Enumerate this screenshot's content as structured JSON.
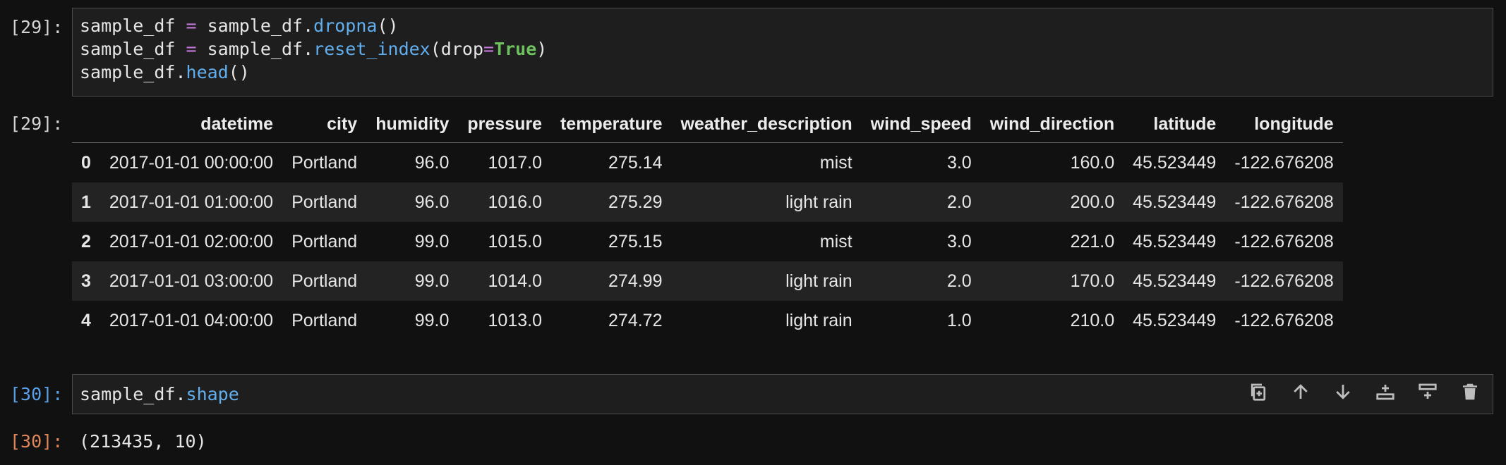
{
  "cells": [
    {
      "input_prompt": "[29]:",
      "output_prompt": "[29]:",
      "code_lines": [
        [
          {
            "t": "sample_df ",
            "c": ""
          },
          {
            "t": "=",
            "c": "kw-op"
          },
          {
            "t": " sample_df.",
            "c": ""
          },
          {
            "t": "dropna",
            "c": "fn"
          },
          {
            "t": "()",
            "c": ""
          }
        ],
        [
          {
            "t": "sample_df ",
            "c": ""
          },
          {
            "t": "=",
            "c": "kw-op"
          },
          {
            "t": " sample_df.",
            "c": ""
          },
          {
            "t": "reset_index",
            "c": "fn"
          },
          {
            "t": "(drop",
            "c": ""
          },
          {
            "t": "=",
            "c": "kw-op"
          },
          {
            "t": "True",
            "c": "bool"
          },
          {
            "t": ")",
            "c": ""
          }
        ],
        [
          {
            "t": "sample_df.",
            "c": ""
          },
          {
            "t": "head",
            "c": "fn"
          },
          {
            "t": "()",
            "c": ""
          }
        ]
      ],
      "table": {
        "columns": [
          "",
          "datetime",
          "city",
          "humidity",
          "pressure",
          "temperature",
          "weather_description",
          "wind_speed",
          "wind_direction",
          "latitude",
          "longitude"
        ],
        "rows": [
          [
            "0",
            "2017-01-01 00:00:00",
            "Portland",
            "96.0",
            "1017.0",
            "275.14",
            "mist",
            "3.0",
            "160.0",
            "45.523449",
            "-122.676208"
          ],
          [
            "1",
            "2017-01-01 01:00:00",
            "Portland",
            "96.0",
            "1016.0",
            "275.29",
            "light rain",
            "2.0",
            "200.0",
            "45.523449",
            "-122.676208"
          ],
          [
            "2",
            "2017-01-01 02:00:00",
            "Portland",
            "99.0",
            "1015.0",
            "275.15",
            "mist",
            "3.0",
            "221.0",
            "45.523449",
            "-122.676208"
          ],
          [
            "3",
            "2017-01-01 03:00:00",
            "Portland",
            "99.0",
            "1014.0",
            "274.99",
            "light rain",
            "2.0",
            "170.0",
            "45.523449",
            "-122.676208"
          ],
          [
            "4",
            "2017-01-01 04:00:00",
            "Portland",
            "99.0",
            "1013.0",
            "274.72",
            "light rain",
            "1.0",
            "210.0",
            "45.523449",
            "-122.676208"
          ]
        ]
      }
    },
    {
      "input_prompt": "[30]:",
      "output_prompt": "[30]:",
      "code_lines": [
        [
          {
            "t": "sample_df.",
            "c": ""
          },
          {
            "t": "shape",
            "c": "fn"
          }
        ]
      ],
      "output_text": "(213435, 10)",
      "toolbar": [
        {
          "name": "duplicate-cell-icon"
        },
        {
          "name": "move-up-icon"
        },
        {
          "name": "move-down-icon"
        },
        {
          "name": "insert-below-icon"
        },
        {
          "name": "insert-above-icon"
        },
        {
          "name": "delete-cell-icon"
        }
      ]
    }
  ],
  "colors": {
    "background": "#111111",
    "cell_bg": "#1e1e1e",
    "active_prompt": "#5aa0e8",
    "output_prompt": "#e0875a",
    "operator": "#c678dd",
    "function": "#61afef",
    "boolean": "#6ec15e"
  }
}
